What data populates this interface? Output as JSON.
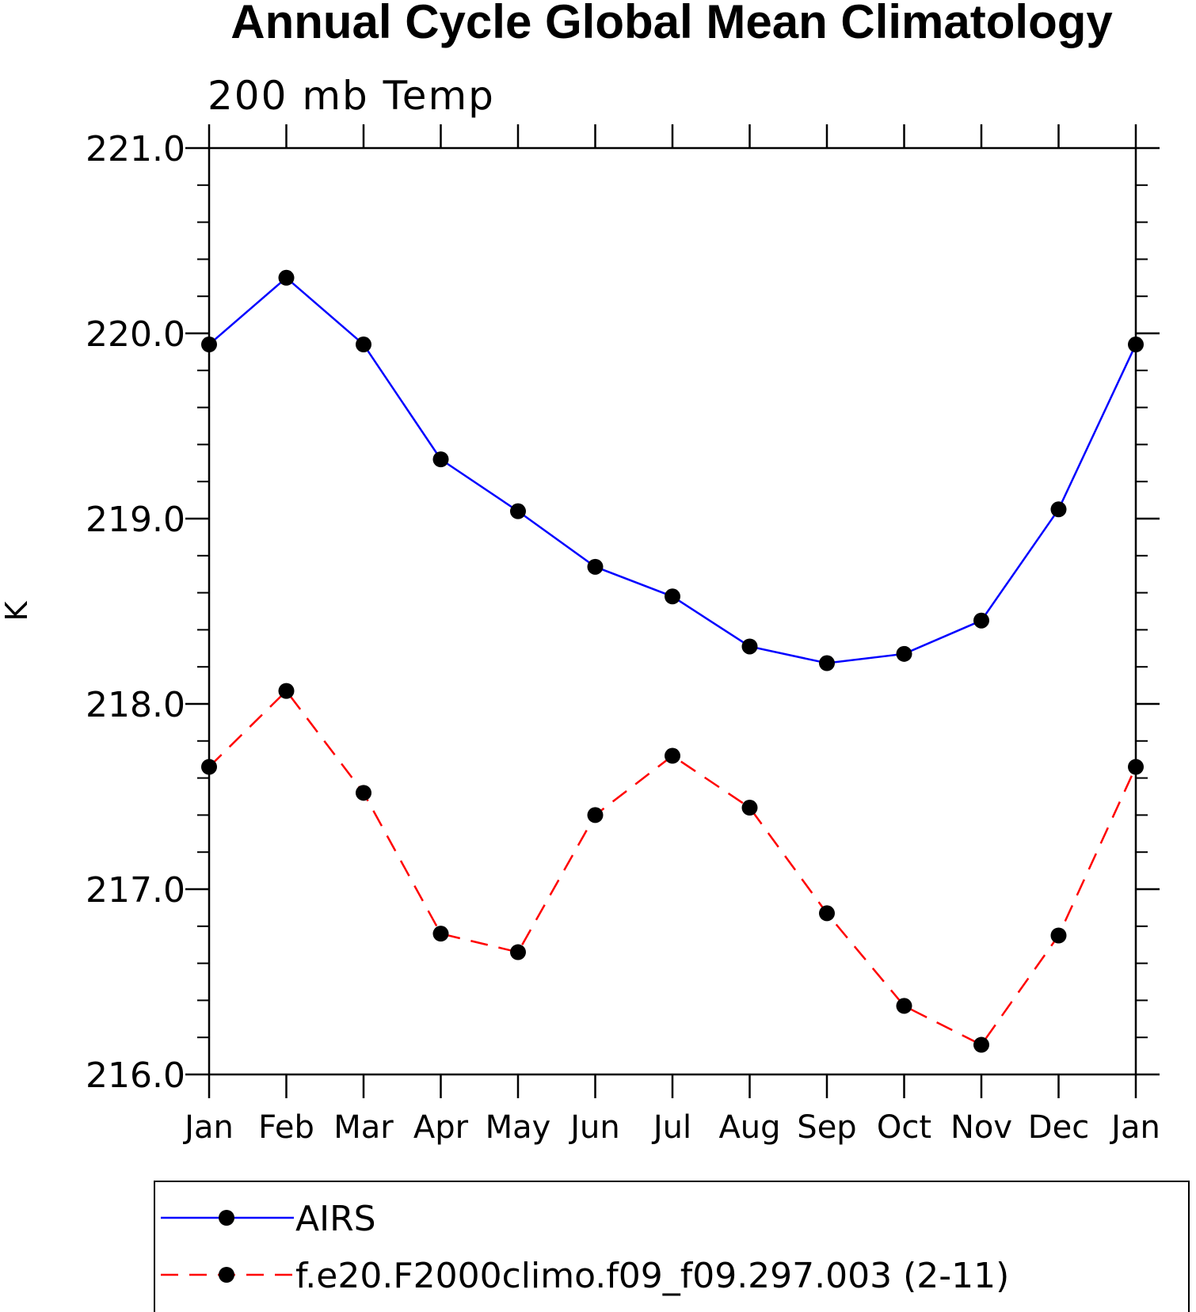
{
  "chart_data": {
    "type": "line",
    "title": "Annual Cycle Global Mean Climatology",
    "subtitle": "200 mb Temp",
    "ylabel": "K",
    "xlabel": "",
    "categories": [
      "Jan",
      "Feb",
      "Mar",
      "Apr",
      "May",
      "Jun",
      "Jul",
      "Aug",
      "Sep",
      "Oct",
      "Nov",
      "Dec",
      "Jan"
    ],
    "ylim": [
      216.0,
      221.0
    ],
    "yticks": [
      216.0,
      217.0,
      218.0,
      219.0,
      220.0,
      221.0
    ],
    "ytick_labels": [
      "216.0",
      "217.0",
      "218.0",
      "219.0",
      "220.0",
      "221.0"
    ],
    "grid": false,
    "legend_position": "bottom",
    "series": [
      {
        "name": "AIRS",
        "color": "#0000ff",
        "dash": "solid",
        "marker": "filled-circle",
        "values": [
          219.94,
          220.3,
          219.94,
          219.32,
          219.04,
          218.74,
          218.58,
          218.31,
          218.22,
          218.27,
          218.45,
          219.05,
          219.94
        ]
      },
      {
        "name": "f.e20.F2000climo.f09_f09.297.003 (2-11)",
        "color": "#ff0000",
        "dash": "dashed",
        "marker": "filled-circle",
        "values": [
          217.66,
          218.07,
          217.52,
          216.76,
          216.66,
          217.4,
          217.72,
          217.44,
          216.87,
          216.37,
          216.16,
          216.75,
          217.66
        ]
      }
    ]
  }
}
